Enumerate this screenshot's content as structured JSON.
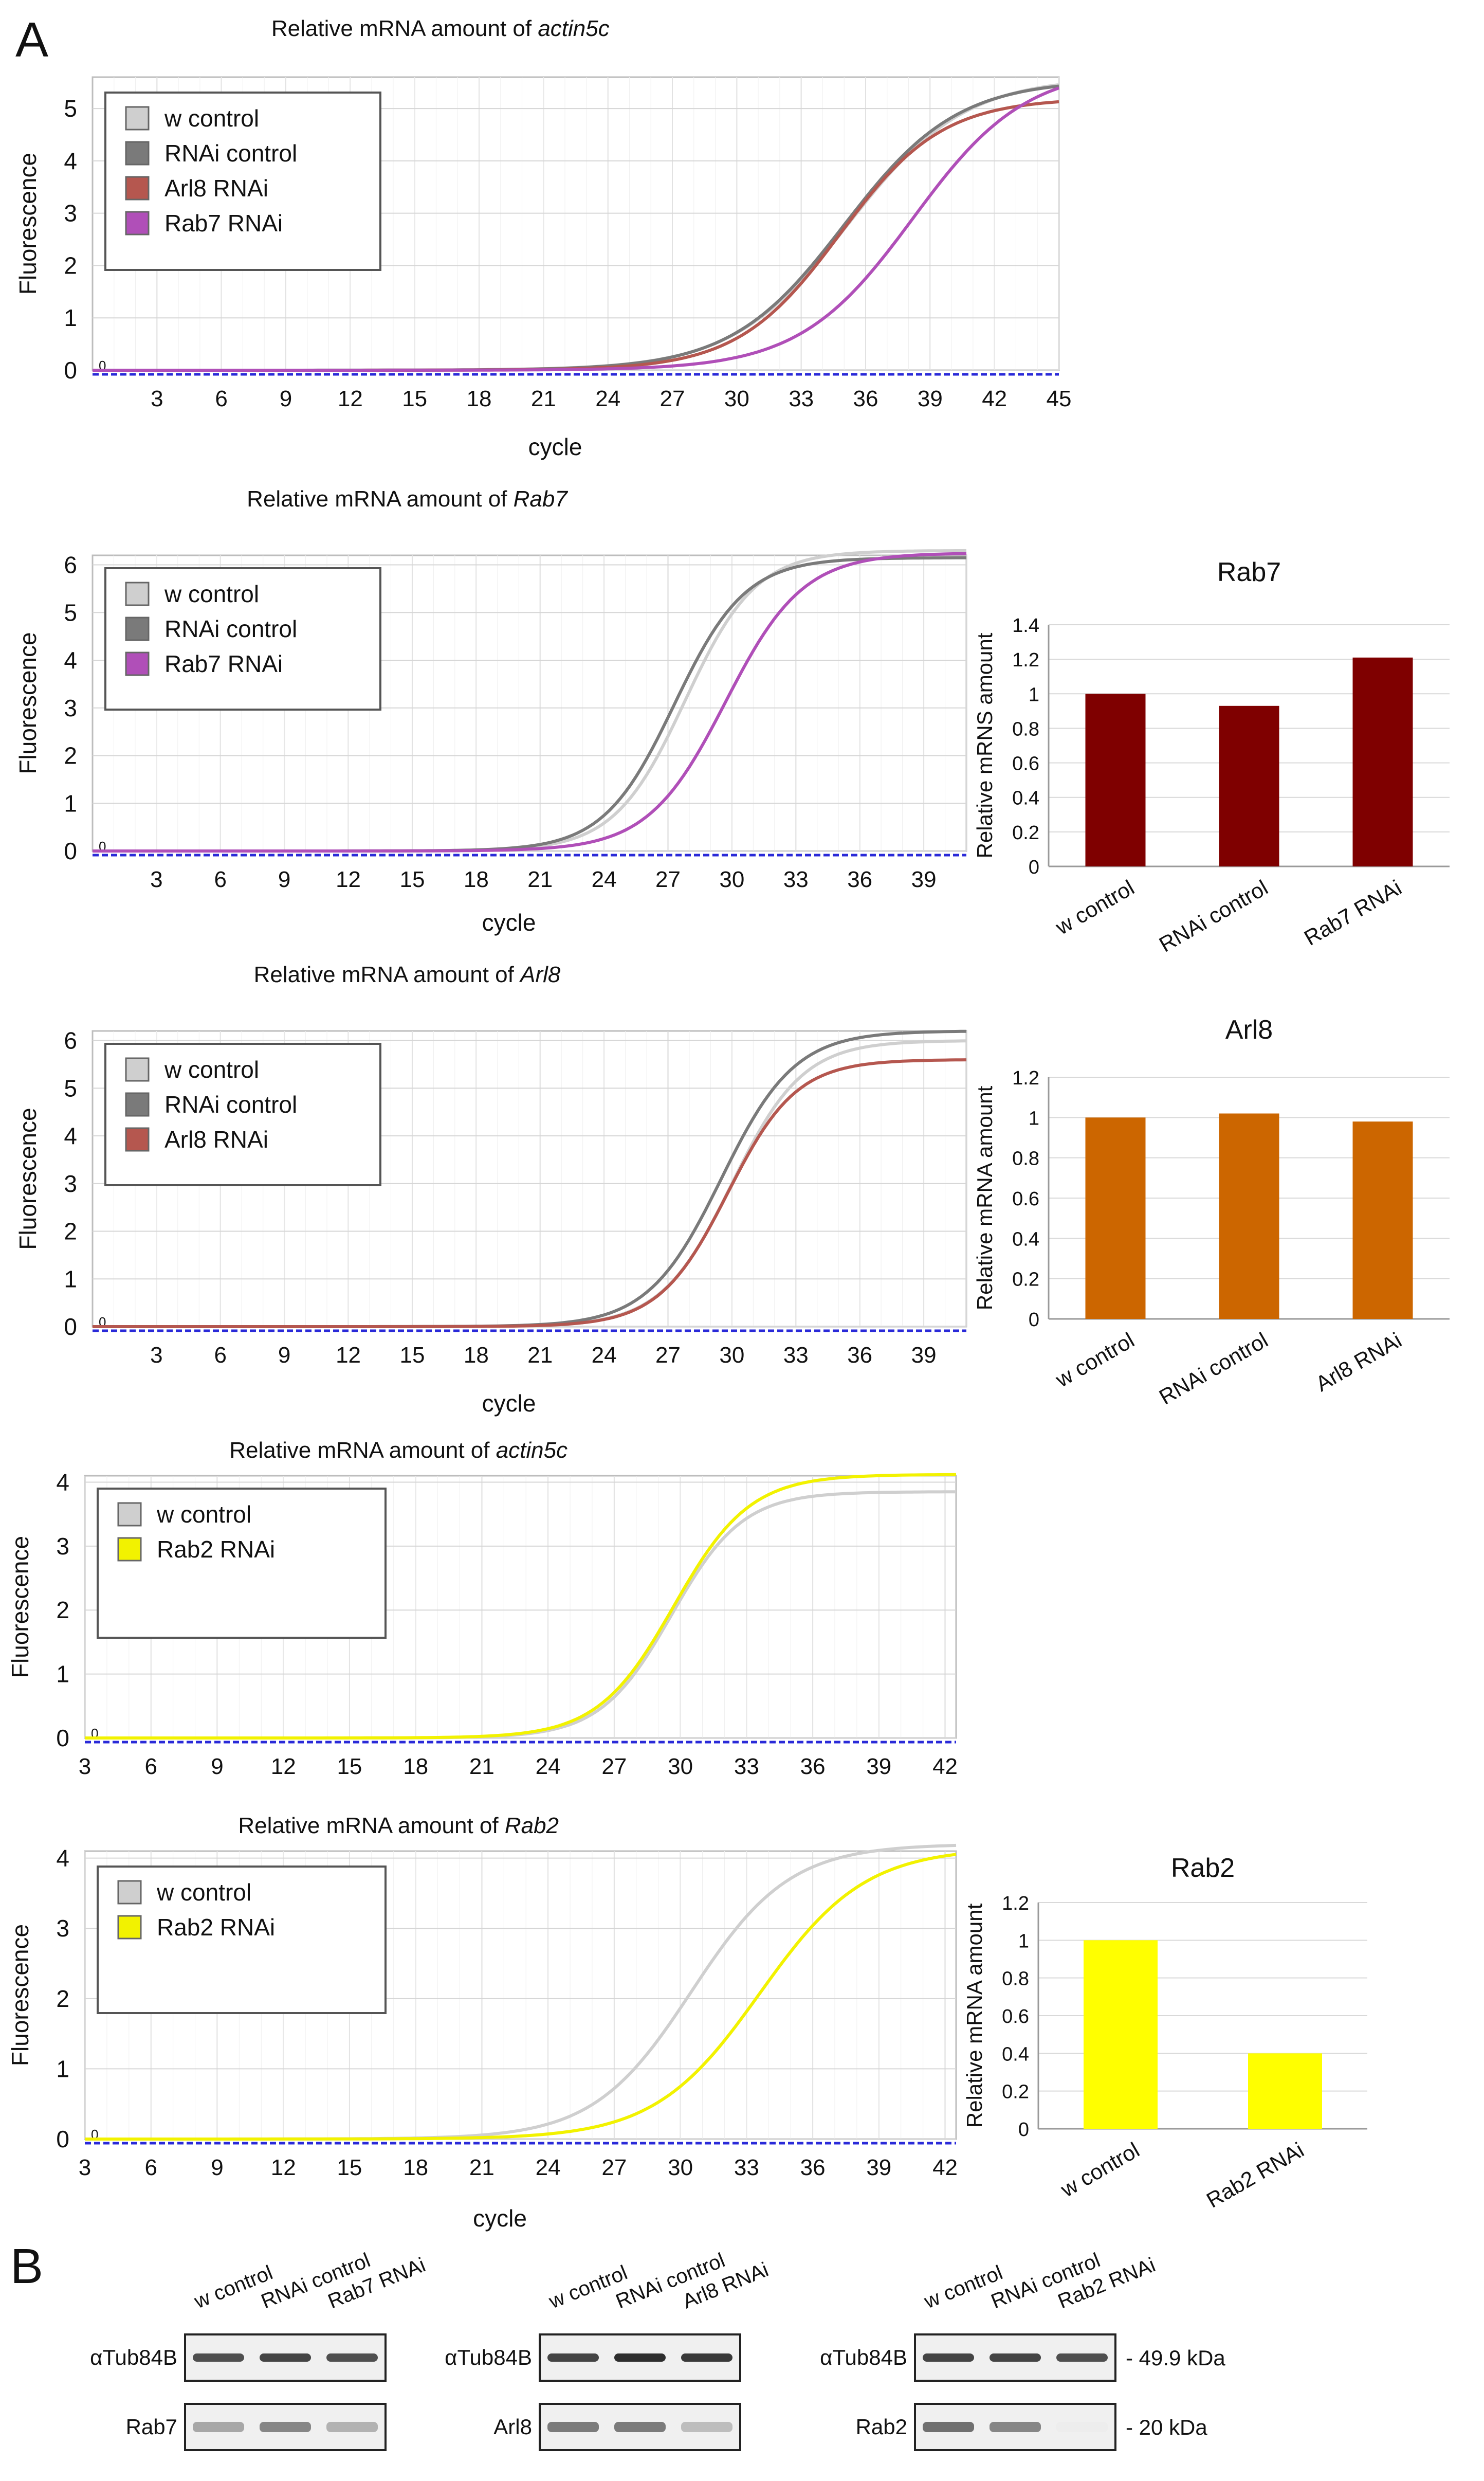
{
  "panel_labels": {
    "a": "A",
    "b": "B"
  },
  "colors": {
    "w_control": "#cfcfcf",
    "rnai_control": "#7a7a7a",
    "arl8_rnai": "#b5574f",
    "rab7_rnai": "#b04fb8",
    "rab2_rnai": "#f2f200",
    "baseline": "#2a2ad8",
    "rab7_bar": "#7f0000",
    "arl8_bar": "#cc6600",
    "rab2_bar": "#ffff00"
  },
  "chart_data": [
    {
      "id": "actin5c-a",
      "type": "line",
      "title_prefix": "Relative mRNA amount of ",
      "title_gene": "actin5c",
      "xlabel": "cycle",
      "ylabel": "Fluorescence",
      "xlim": [
        0,
        45
      ],
      "ylim": [
        0,
        5.6
      ],
      "xticks": [
        3,
        6,
        9,
        12,
        15,
        18,
        21,
        24,
        27,
        30,
        33,
        36,
        39,
        42,
        45
      ],
      "yticks": [
        0,
        1,
        2,
        3,
        4,
        5
      ],
      "threshold_label": "0",
      "series": [
        {
          "name": "w control",
          "color": "#cfcfcf",
          "max": 5.6,
          "midpoint": 35.2,
          "slope": 0.37
        },
        {
          "name": "RNAi control",
          "color": "#7a7a7a",
          "max": 5.55,
          "midpoint": 35.0,
          "slope": 0.38
        },
        {
          "name": "Arl8 RNAi",
          "color": "#b5574f",
          "max": 5.2,
          "midpoint": 34.8,
          "slope": 0.42
        },
        {
          "name": "Rab7 RNAi",
          "color": "#b04fb8",
          "max": 5.8,
          "midpoint": 38.2,
          "slope": 0.38
        }
      ]
    },
    {
      "id": "rab7-line",
      "type": "line",
      "title_prefix": "Relative mRNA amount of ",
      "title_gene": "Rab7",
      "xlabel": "cycle",
      "ylabel": "Fluorescence",
      "xlim": [
        0,
        41
      ],
      "ylim": [
        0,
        6.2
      ],
      "xticks": [
        3,
        6,
        9,
        12,
        15,
        18,
        21,
        24,
        27,
        30,
        33,
        36,
        39
      ],
      "yticks": [
        0,
        1,
        2,
        3,
        4,
        5,
        6
      ],
      "threshold_label": "0",
      "series": [
        {
          "name": "w control",
          "color": "#cfcfcf",
          "max": 6.3,
          "midpoint": 27.8,
          "slope": 0.6
        },
        {
          "name": "RNAi control",
          "color": "#7a7a7a",
          "max": 6.15,
          "midpoint": 27.3,
          "slope": 0.6
        },
        {
          "name": "Rab7 RNAi",
          "color": "#b04fb8",
          "max": 6.25,
          "midpoint": 29.7,
          "slope": 0.55
        }
      ]
    },
    {
      "id": "rab7-bar",
      "type": "bar",
      "title": "Rab7",
      "ylabel": "Relative mRNS amount",
      "categories": [
        "w control",
        "RNAi control",
        "Rab7 RNAi"
      ],
      "values": [
        1.0,
        0.93,
        1.21
      ],
      "ylim": [
        0,
        1.4
      ],
      "yticks": [
        "0",
        "0.2",
        "0.4",
        "0.6",
        "0.8",
        "1",
        "1.2",
        "1.4"
      ],
      "color": "#7f0000"
    },
    {
      "id": "arl8-line",
      "type": "line",
      "title_prefix": "Relative mRNA amount of ",
      "title_gene": "Arl8",
      "xlabel": "cycle",
      "ylabel": "Fluorescence",
      "xlim": [
        0,
        41
      ],
      "ylim": [
        0,
        6.2
      ],
      "xticks": [
        3,
        6,
        9,
        12,
        15,
        18,
        21,
        24,
        27,
        30,
        33,
        36,
        39
      ],
      "yticks": [
        0,
        1,
        2,
        3,
        4,
        5,
        6
      ],
      "threshold_label": "0",
      "series": [
        {
          "name": "w control",
          "color": "#cfcfcf",
          "max": 6.0,
          "midpoint": 30.0,
          "slope": 0.6
        },
        {
          "name": "RNAi control",
          "color": "#7a7a7a",
          "max": 6.2,
          "midpoint": 29.5,
          "slope": 0.58
        },
        {
          "name": "Arl8 RNAi",
          "color": "#b5574f",
          "max": 5.6,
          "midpoint": 29.8,
          "slope": 0.62
        }
      ]
    },
    {
      "id": "arl8-bar",
      "type": "bar",
      "title": "Arl8",
      "ylabel": "Relative mRNA amount",
      "categories": [
        "w control",
        "RNAi control",
        "Arl8 RNAi"
      ],
      "values": [
        1.0,
        1.02,
        0.98
      ],
      "ylim": [
        0,
        1.2
      ],
      "yticks": [
        "0",
        "0.2",
        "0.4",
        "0.6",
        "0.8",
        "1",
        "1.2"
      ],
      "color": "#cc6600"
    },
    {
      "id": "actin5c-b",
      "type": "line",
      "title_prefix": "Relative mRNA amount of ",
      "title_gene": "actin5c",
      "xlabel": "",
      "ylabel": "Fluorescence",
      "xlim": [
        3,
        42.5
      ],
      "ylim": [
        0,
        4.1
      ],
      "xticks": [
        3,
        6,
        9,
        12,
        15,
        18,
        21,
        24,
        27,
        30,
        33,
        36,
        39,
        42
      ],
      "yticks": [
        0,
        1,
        2,
        3,
        4
      ],
      "threshold_label": "0",
      "series": [
        {
          "name": "w control",
          "color": "#cfcfcf",
          "max": 3.85,
          "midpoint": 29.6,
          "slope": 0.62
        },
        {
          "name": "Rab2 RNAi",
          "color": "#f2f200",
          "max": 4.12,
          "midpoint": 29.7,
          "slope": 0.58
        }
      ]
    },
    {
      "id": "rab2-line",
      "type": "line",
      "title_prefix": "Relative mRNA amount of ",
      "title_gene": "Rab2",
      "xlabel": "cycle",
      "ylabel": "Fluorescence",
      "xlim": [
        3,
        42.5
      ],
      "ylim": [
        0,
        4.1
      ],
      "xticks": [
        3,
        6,
        9,
        12,
        15,
        18,
        21,
        24,
        27,
        30,
        33,
        36,
        39,
        42
      ],
      "yticks": [
        0,
        1,
        2,
        3,
        4
      ],
      "threshold_label": "0",
      "series": [
        {
          "name": "w control",
          "color": "#cfcfcf",
          "max": 4.2,
          "midpoint": 30.5,
          "slope": 0.45
        },
        {
          "name": "Rab2 RNAi",
          "color": "#f2f200",
          "max": 4.15,
          "midpoint": 33.6,
          "slope": 0.42
        }
      ]
    },
    {
      "id": "rab2-bar",
      "type": "bar",
      "title": "Rab2",
      "ylabel": "Relative mRNA amount",
      "categories": [
        "w control",
        "Rab2 RNAi"
      ],
      "values": [
        1.0,
        0.4
      ],
      "ylim": [
        0,
        1.2
      ],
      "yticks": [
        "0",
        "0.2",
        "0.4",
        "0.6",
        "0.8",
        "1",
        "1.2"
      ],
      "color": "#ffff00"
    }
  ],
  "blots": [
    {
      "id": "rab7",
      "lanes": [
        "w control",
        "RNAi control",
        "Rab7 RNAi"
      ],
      "top_label": "αTub84B",
      "bottom_label": "Rab7",
      "top_intensity": [
        0.8,
        0.85,
        0.8
      ],
      "bottom_intensity": [
        0.4,
        0.55,
        0.35
      ]
    },
    {
      "id": "arl8",
      "lanes": [
        "w control",
        "RNAi control",
        "Arl8 RNAi"
      ],
      "top_label": "αTub84B",
      "bottom_label": "Arl8",
      "top_intensity": [
        0.85,
        0.95,
        0.9
      ],
      "bottom_intensity": [
        0.6,
        0.6,
        0.3
      ]
    },
    {
      "id": "rab2",
      "lanes": [
        "w control",
        "RNAi control",
        "Rab2 RNAi"
      ],
      "top_label": "αTub84B",
      "bottom_label": "Rab2",
      "top_intensity": [
        0.85,
        0.85,
        0.8
      ],
      "bottom_intensity": [
        0.65,
        0.55,
        0.08
      ],
      "markers": [
        "- 49.9 kDa",
        "- 20 kDa"
      ]
    }
  ]
}
